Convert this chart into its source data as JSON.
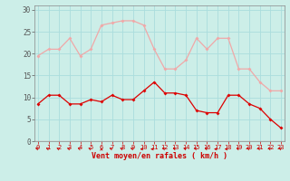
{
  "hours": [
    0,
    1,
    2,
    3,
    4,
    5,
    6,
    7,
    8,
    9,
    10,
    11,
    12,
    13,
    14,
    15,
    16,
    17,
    18,
    19,
    20,
    21,
    22,
    23
  ],
  "wind_avg": [
    8.5,
    10.5,
    10.5,
    8.5,
    8.5,
    9.5,
    9,
    10.5,
    9.5,
    9.5,
    11.5,
    13.5,
    11,
    11,
    10.5,
    7,
    6.5,
    6.5,
    10.5,
    10.5,
    8.5,
    7.5,
    5,
    3
  ],
  "wind_gust": [
    19.5,
    21,
    21,
    23.5,
    19.5,
    21,
    26.5,
    27,
    27.5,
    27.5,
    26.5,
    21,
    16.5,
    16.5,
    18.5,
    23.5,
    21,
    23.5,
    23.5,
    16.5,
    16.5,
    13.5,
    11.5,
    11.5
  ],
  "avg_color": "#dd0000",
  "gust_color": "#f0a8a8",
  "bg_color": "#cceee8",
  "grid_color": "#aadddd",
  "axis_color": "#888888",
  "xlabel": "Vent moyen/en rafales ( km/h )",
  "ylabel_values": [
    0,
    5,
    10,
    15,
    20,
    25,
    30
  ],
  "ylim": [
    0,
    31
  ],
  "xlim": [
    -0.3,
    23.3
  ]
}
